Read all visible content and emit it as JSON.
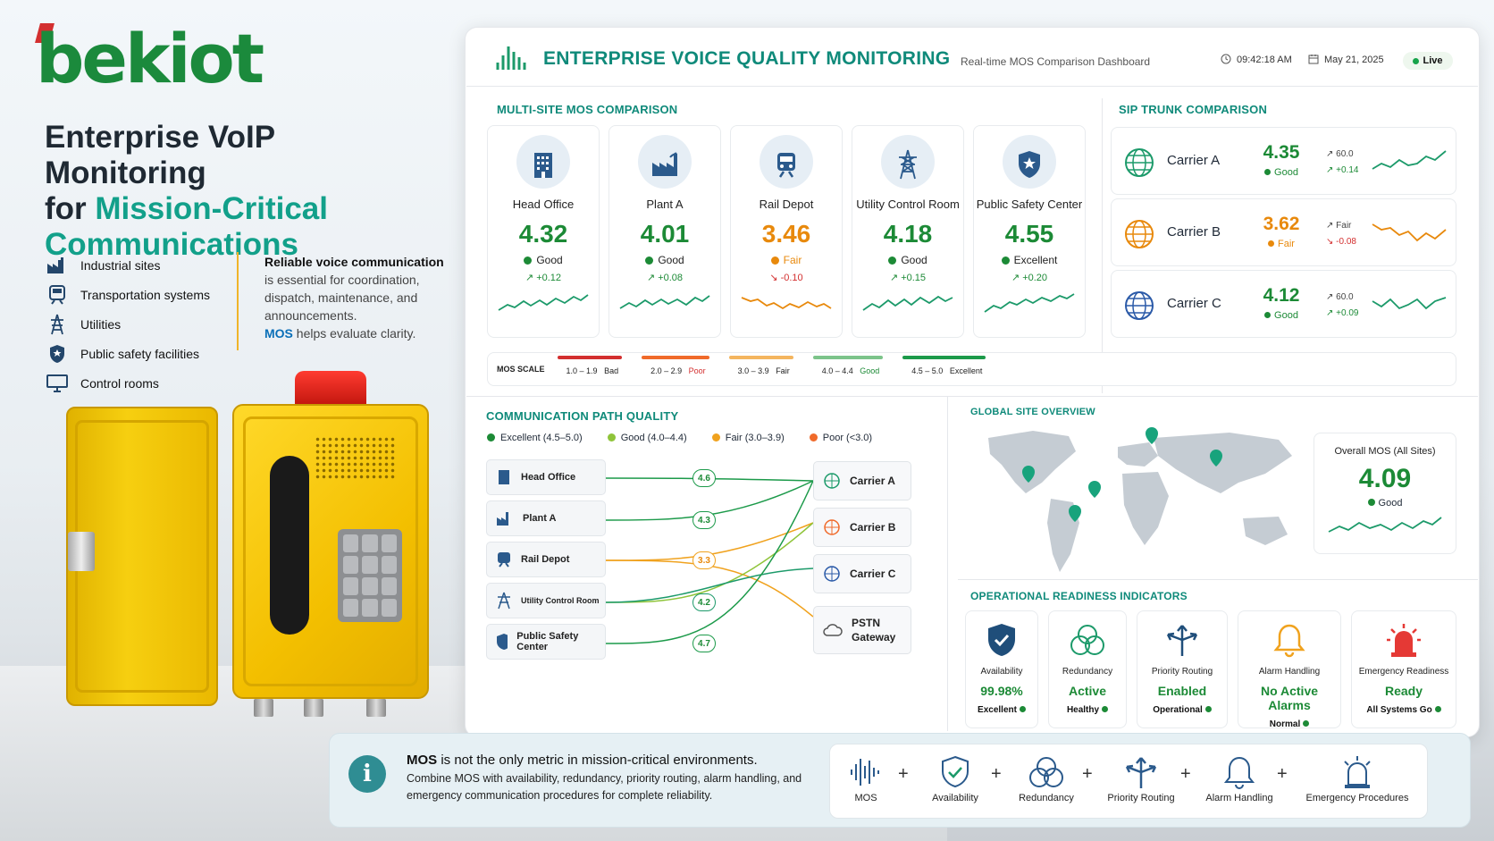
{
  "brand": {
    "logo": "bekiot"
  },
  "left": {
    "headline_1": "Enterprise VoIP Monitoring",
    "headline_2a": "for ",
    "headline_2b": "Mission-Critical",
    "headline_3": "Communications",
    "features": [
      "Industrial sites",
      "Transportation systems",
      "Utilities",
      "Public safety facilities",
      "Control rooms"
    ],
    "reliable_title": "Reliable voice communication",
    "reliable_body": "is essential for coordination, dispatch, maintenance, and announcements.",
    "reliable_mos": "MOS",
    "reliable_tail": " helps evaluate clarity."
  },
  "header": {
    "title": "ENTERPRISE VOICE QUALITY MONITORING",
    "subtitle": "Real-time MOS Comparison Dashboard",
    "time": "09:42:18 AM",
    "date": "May 21, 2025",
    "live": "Live"
  },
  "sites": {
    "title": "MULTI-SITE MOS COMPARISON",
    "items": [
      {
        "name": "Head Office",
        "value": "4.32",
        "status": "Good",
        "delta": "↗ +0.12",
        "color": "#1c8a36"
      },
      {
        "name": "Plant A",
        "value": "4.01",
        "status": "Good",
        "delta": "↗ +0.08",
        "color": "#1c8a36"
      },
      {
        "name": "Rail Depot",
        "value": "3.46",
        "status": "Fair",
        "delta": "↘ -0.10",
        "color": "#e8890c"
      },
      {
        "name": "Utility Control Room",
        "value": "4.18",
        "status": "Good",
        "delta": "↗ +0.15",
        "color": "#1c8a36"
      },
      {
        "name": "Public Safety Center",
        "value": "4.55",
        "status": "Excellent",
        "delta": "↗ +0.20",
        "color": "#1c8a36"
      }
    ]
  },
  "trunks": {
    "title": "SIP TRUNK COMPARISON",
    "items": [
      {
        "name": "Carrier A",
        "value": "4.35",
        "status": "Good",
        "d1": "↗ 60.0",
        "d2": "↗ +0.14",
        "color": "#1c8a36"
      },
      {
        "name": "Carrier B",
        "value": "3.62",
        "status": "Fair",
        "d1": "↗ Fair",
        "d2": "↘ -0.08",
        "color": "#e8890c"
      },
      {
        "name": "Carrier C",
        "value": "4.12",
        "status": "Good",
        "d1": "↗ 60.0",
        "d2": "↗ +0.09",
        "color": "#1c8a36"
      }
    ]
  },
  "scale": {
    "label": "MOS SCALE",
    "segments": [
      {
        "range": "1.0 – 1.9",
        "name": "Bad",
        "color": "#d32f2f"
      },
      {
        "range": "2.0 – 2.9",
        "name": "Poor",
        "color": "#f06a2a"
      },
      {
        "range": "3.0 – 3.9",
        "name": "Fair",
        "color": "#f4b55f"
      },
      {
        "range": "4.0 – 4.4",
        "name": "Good",
        "color": "#7cc48a"
      },
      {
        "range": "4.5 – 5.0",
        "name": "Excellent",
        "color": "#1c9a4a"
      }
    ]
  },
  "paths": {
    "title": "COMMUNICATION PATH QUALITY",
    "legend": [
      "Excellent (4.5–5.0)",
      "Good (4.0–4.4)",
      "Fair (3.0–3.9)",
      "Poor (<3.0)"
    ],
    "sources": [
      "Head Office",
      "Plant A",
      "Rail Depot",
      "Utility Control Room",
      "Public Safety Center"
    ],
    "scores": [
      "4.6",
      "4.3",
      "3.3",
      "4.2",
      "4.7"
    ],
    "carriers": [
      "Carrier A",
      "Carrier B",
      "Carrier C",
      "PSTN Gateway"
    ]
  },
  "global": {
    "title": "GLOBAL SITE OVERVIEW",
    "overall_title": "Overall MOS (All Sites)",
    "overall_value": "4.09",
    "overall_status": "Good"
  },
  "ops": {
    "title": "OPERATIONAL READINESS INDICATORS",
    "items": [
      {
        "title": "Availability",
        "value": "99.98%",
        "status": "Excellent"
      },
      {
        "title": "Redundancy",
        "value": "Active",
        "status": "Healthy"
      },
      {
        "title": "Priority Routing",
        "value": "Enabled",
        "status": "Operational"
      },
      {
        "title": "Alarm Handling",
        "value": "No Active Alarms",
        "status": "Normal"
      },
      {
        "title": "Emergency Readiness",
        "value": "Ready",
        "status": "All Systems Go"
      }
    ]
  },
  "banner": {
    "title_bold": "MOS",
    "title_rest": " is not the only metric in mission-critical environments.",
    "body": "Combine MOS with availability, redundancy, priority routing, alarm handling, and emergency communication procedures for complete reliability.",
    "chain": [
      "MOS",
      "Availability",
      "Redundancy",
      "Priority Routing",
      "Alarm Handling",
      "Emergency Procedures"
    ],
    "plus": "+"
  },
  "colors": {
    "accent": "#0f8a7a",
    "good": "#1c8a36",
    "fair": "#e8890c",
    "poor": "#d32f2f",
    "brand_green": "#1b8a3c"
  }
}
